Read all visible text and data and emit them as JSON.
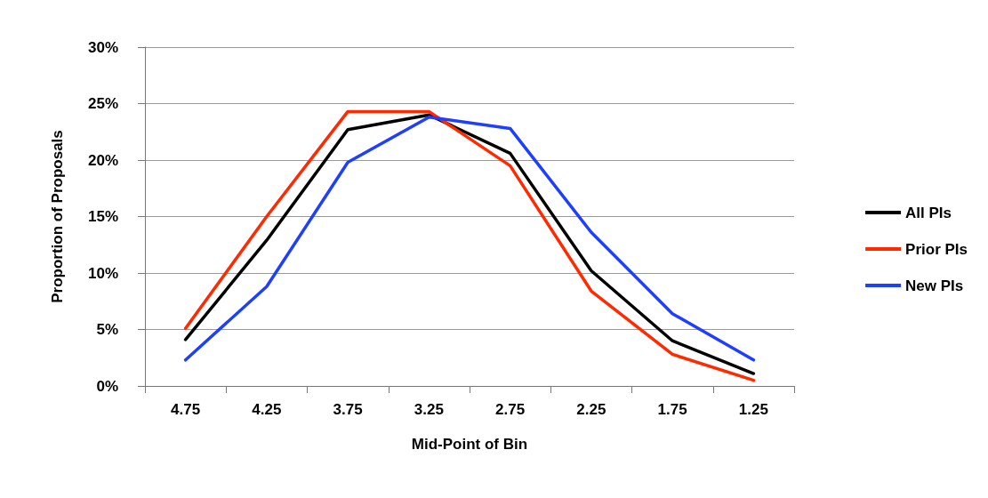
{
  "chart_data": {
    "type": "line",
    "xlabel": "Mid-Point of Bin",
    "ylabel": "Proportion of Proposals",
    "categories": [
      "4.75",
      "4.25",
      "3.75",
      "3.25",
      "2.75",
      "2.25",
      "1.75",
      "1.25"
    ],
    "series": [
      {
        "name": "All PIs",
        "color": "#000000",
        "values": [
          4.1,
          12.9,
          22.7,
          24.0,
          20.6,
          10.2,
          4.0,
          1.1
        ]
      },
      {
        "name": "Prior PIs",
        "color": "#ff2a00",
        "values": [
          5.1,
          15.0,
          24.3,
          24.3,
          19.5,
          8.4,
          2.8,
          0.5
        ]
      },
      {
        "name": "New PIs",
        "color": "#1f3fff",
        "values": [
          2.3,
          8.8,
          19.8,
          23.8,
          22.8,
          13.6,
          6.4,
          2.3
        ]
      }
    ],
    "ylim": [
      0,
      30
    ],
    "yticks": [
      {
        "value": 0,
        "label": "0%"
      },
      {
        "value": 5,
        "label": "5%"
      },
      {
        "value": 10,
        "label": "10%"
      },
      {
        "value": 15,
        "label": "15%"
      },
      {
        "value": 20,
        "label": "20%"
      },
      {
        "value": 25,
        "label": "25%"
      },
      {
        "value": 30,
        "label": "30%"
      }
    ],
    "grid": "y",
    "legend": "right",
    "marker": "none",
    "line_style": "solid"
  }
}
